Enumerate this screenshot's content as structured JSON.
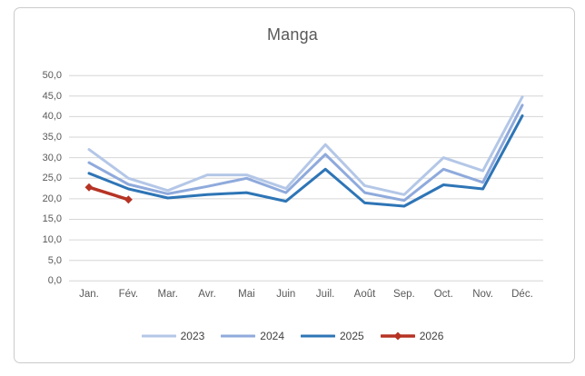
{
  "chart": {
    "title": "Manga",
    "y_ticks": [
      "50,0",
      "45,0",
      "40,0",
      "35,0",
      "30,0",
      "25,0",
      "20,0",
      "15,0",
      "10,0",
      "5,0",
      "0,0"
    ],
    "colors": {
      "grid": "#d6d6d6",
      "axis_text": "#595959",
      "title_text": "#595959"
    }
  },
  "chart_data": {
    "type": "line",
    "title": "Manga",
    "categories": [
      "Jan.",
      "Fév.",
      "Mar.",
      "Avr.",
      "Mai",
      "Juin",
      "Juil.",
      "Août",
      "Sep.",
      "Oct.",
      "Nov.",
      "Déc."
    ],
    "series": [
      {
        "name": "2023",
        "color": "#b4c7e7",
        "marker": "none",
        "values": [
          32.0,
          25.0,
          22.0,
          25.8,
          25.8,
          22.5,
          33.2,
          23.2,
          21.0,
          30.0,
          26.8,
          44.8
        ]
      },
      {
        "name": "2024",
        "color": "#8faadc",
        "marker": "none",
        "values": [
          28.8,
          23.5,
          21.2,
          23.0,
          25.0,
          21.5,
          30.8,
          21.5,
          19.6,
          27.2,
          24.0,
          42.8
        ]
      },
      {
        "name": "2025",
        "color": "#2e75b6",
        "marker": "none",
        "values": [
          26.2,
          22.4,
          20.2,
          21.0,
          21.5,
          19.4,
          27.2,
          19.0,
          18.2,
          23.4,
          22.4,
          40.2
        ]
      },
      {
        "name": "2026",
        "color": "#b63324",
        "marker": "diamond",
        "values": [
          22.8,
          19.8,
          null,
          null,
          null,
          null,
          null,
          null,
          null,
          null,
          null,
          null
        ]
      }
    ],
    "xlabel": "",
    "ylabel": "",
    "ylim": [
      0,
      50
    ],
    "y_step": 5,
    "grid": true,
    "legend_position": "bottom"
  }
}
